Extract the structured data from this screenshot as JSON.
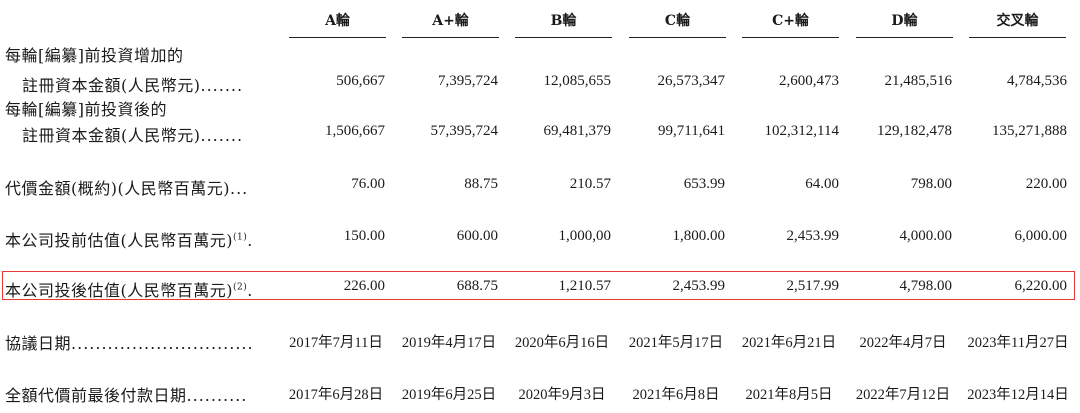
{
  "columns": [
    "A輪",
    "A+輪",
    "B輪",
    "C輪",
    "C+輪",
    "D輪",
    "交叉輪"
  ],
  "rows": {
    "registered_before": {
      "label_line1": "每輪[編纂]前投資增加的",
      "label_line2": "註冊資本金額(人民幣元)",
      "values": [
        "506,667",
        "7,395,724",
        "12,085,655",
        "26,573,347",
        "2,600,473",
        "21,485,516",
        "4,784,536"
      ]
    },
    "registered_after": {
      "label_line1": "每輪[編纂]前投資後的",
      "label_line2": "註冊資本金額(人民幣元)",
      "values": [
        "1,506,667",
        "57,395,724",
        "69,481,379",
        "99,711,641",
        "102,312,114",
        "129,182,478",
        "135,271,888"
      ]
    },
    "consideration": {
      "label": "代價金額(概約)(人民幣百萬元)",
      "values": [
        "76.00",
        "88.75",
        "210.57",
        "653.99",
        "64.00",
        "798.00",
        "220.00"
      ]
    },
    "pre_money": {
      "label": "本公司投前估值(人民幣百萬元)",
      "note": "(1)",
      "values": [
        "150.00",
        "600.00",
        "1,000,00",
        "1,800.00",
        "2,453.99",
        "4,000.00",
        "6,000.00"
      ]
    },
    "post_money": {
      "label": "本公司投後估值(人民幣百萬元)",
      "note": "(2)",
      "values": [
        "226.00",
        "688.75",
        "1,210.57",
        "2,453.99",
        "2,517.99",
        "4,798.00",
        "6,220.00"
      ]
    },
    "agreement_date": {
      "label": "協議日期",
      "values": [
        "2017年7月11日",
        "2019年4月17日",
        "2020年6月16日",
        "2021年5月17日",
        "2021年6月21日",
        "2022年4月7日",
        "2023年11月27日"
      ]
    },
    "payment_date": {
      "label": "全額代價前最後付款日期",
      "values": [
        "2017年6月28日",
        "2019年6月25日",
        "2020年9月3日",
        "2021年6月8日",
        "2021年8月5日",
        "2022年7月12日",
        "2023年12月14日"
      ]
    }
  },
  "colors": {
    "highlight_border": "#e53935"
  }
}
